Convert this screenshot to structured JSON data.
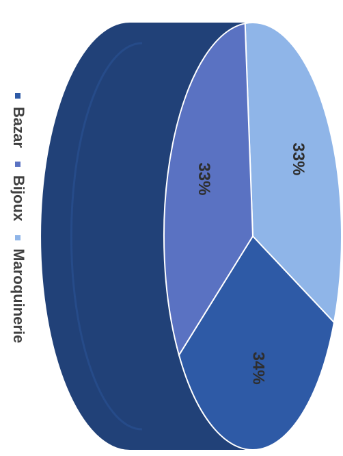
{
  "chart_data": {
    "type": "pie",
    "style": "3d",
    "orientation": "rotated-90-clockwise",
    "categories": [
      "Bazar",
      "Bijoux",
      "Maroquinerie"
    ],
    "values": [
      34,
      33,
      33
    ],
    "labels": [
      "34%",
      "33%",
      "33%"
    ],
    "colors": [
      "#2e5aa6",
      "#5a72c2",
      "#8fb5e8"
    ],
    "legend": {
      "placement": "bottom",
      "entries": [
        "Bazar",
        "Bijoux",
        "Maroquinerie"
      ]
    },
    "title": "",
    "xlabel": "",
    "ylabel": ""
  }
}
